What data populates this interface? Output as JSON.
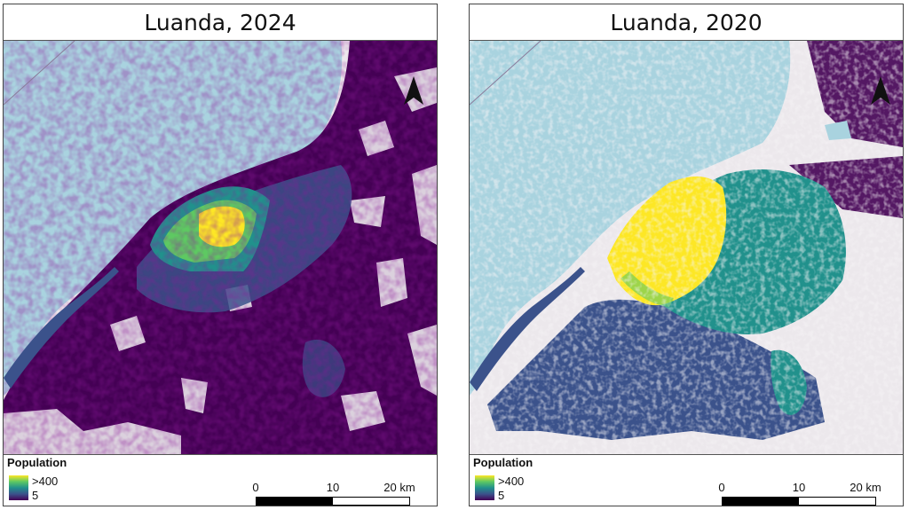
{
  "left_panel": {
    "title": "Luanda, 2024",
    "legend": {
      "title": "Population",
      "max_label": ">400",
      "min_label": "5"
    },
    "scalebar": {
      "labels": [
        "0",
        "10",
        "20 km"
      ]
    }
  },
  "right_panel": {
    "title": "Luanda, 2020",
    "legend": {
      "title": "Population",
      "max_label": ">400",
      "min_label": "5"
    },
    "scalebar": {
      "labels": [
        "0",
        "10",
        "20 km"
      ]
    }
  },
  "colors": {
    "sea": "#a9d3df",
    "land": "#ece8ec",
    "density_low": "#440154",
    "density_mid_low": "#3b528b",
    "density_mid": "#21918c",
    "density_mid_high": "#5ec962",
    "density_high": "#fde725"
  },
  "icons": {
    "north_arrow": "north-arrow-icon"
  }
}
